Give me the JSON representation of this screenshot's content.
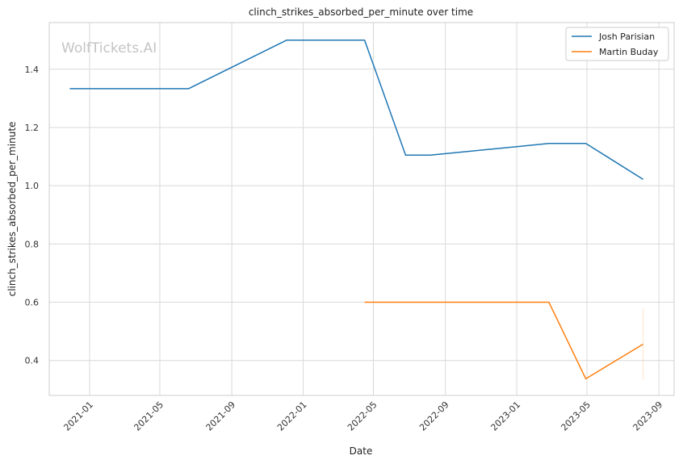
{
  "chart_data": {
    "type": "line",
    "title": "clinch_strikes_absorbed_per_minute over time",
    "xlabel": "Date",
    "ylabel": "clinch_strikes_absorbed_per_minute",
    "watermark": "WolfTickets.AI",
    "xlim": [
      "2020-10-24",
      "2023-09-27"
    ],
    "ylim": [
      0.28,
      1.56
    ],
    "x_ticks": [
      "2021-01-01",
      "2021-05-01",
      "2021-09-01",
      "2022-01-01",
      "2022-05-01",
      "2022-09-01",
      "2023-01-01",
      "2023-05-01",
      "2023-09-01"
    ],
    "x_tick_labels": [
      "2021-01",
      "2021-05",
      "2021-09",
      "2022-01",
      "2022-05",
      "2022-09",
      "2023-01",
      "2023-05",
      "2023-09"
    ],
    "y_ticks": [
      0.4,
      0.6,
      0.8,
      1.0,
      1.2,
      1.4
    ],
    "y_tick_labels": [
      "0.4",
      "0.6",
      "0.8",
      "1.0",
      "1.2",
      "1.4"
    ],
    "grid": true,
    "legend_position": "top-right",
    "series": [
      {
        "name": "Josh Parisian",
        "color": "#1f77b4",
        "points": [
          {
            "x": "2020-11-28",
            "y": 1.333
          },
          {
            "x": "2021-06-19",
            "y": 1.333
          },
          {
            "x": "2021-12-04",
            "y": 1.5
          },
          {
            "x": "2022-04-16",
            "y": 1.5
          },
          {
            "x": "2022-06-25",
            "y": 1.105
          },
          {
            "x": "2022-08-06",
            "y": 1.105
          },
          {
            "x": "2023-02-25",
            "y": 1.145
          },
          {
            "x": "2023-04-29",
            "y": 1.145
          },
          {
            "x": "2023-08-05",
            "y": 1.022
          }
        ]
      },
      {
        "name": "Martin Buday",
        "color": "#ff7f0e",
        "points": [
          {
            "x": "2022-04-16",
            "y": 0.6
          },
          {
            "x": "2023-02-25",
            "y": 0.6
          },
          {
            "x": "2023-04-29",
            "y": 0.337
          },
          {
            "x": "2023-08-05",
            "y": 0.456
          }
        ],
        "error_bar": {
          "x": "2023-08-05",
          "low": 0.333,
          "high": 0.578
        }
      }
    ]
  }
}
